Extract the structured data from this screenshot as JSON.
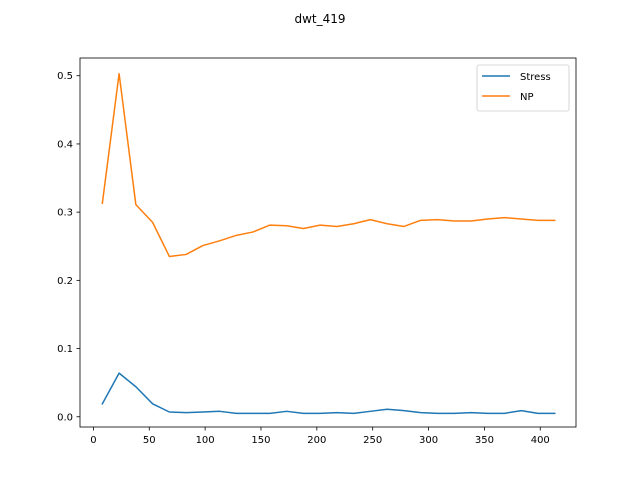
{
  "chart_data": {
    "type": "line",
    "title": "dwt_419",
    "xlabel": "",
    "ylabel": "",
    "xlim": [
      -12,
      432
    ],
    "ylim": [
      -0.015,
      0.526
    ],
    "xticks": [
      0,
      50,
      100,
      150,
      200,
      250,
      300,
      350,
      400
    ],
    "yticks": [
      0.0,
      0.1,
      0.2,
      0.3,
      0.4,
      0.5
    ],
    "ytick_labels": [
      "0.0",
      "0.1",
      "0.2",
      "0.3",
      "0.4",
      "0.5"
    ],
    "grid": false,
    "legend_position": "top-right",
    "x": [
      8,
      23,
      38,
      53,
      68,
      83,
      98,
      113,
      128,
      143,
      158,
      173,
      188,
      203,
      218,
      233,
      248,
      263,
      278,
      293,
      308,
      323,
      338,
      353,
      368,
      383,
      398,
      413
    ],
    "series": [
      {
        "name": "Stress",
        "color": "#1f77b4",
        "values": [
          0.019,
          0.064,
          0.044,
          0.019,
          0.007,
          0.006,
          0.007,
          0.008,
          0.005,
          0.005,
          0.005,
          0.008,
          0.005,
          0.005,
          0.006,
          0.005,
          0.008,
          0.011,
          0.009,
          0.006,
          0.005,
          0.005,
          0.006,
          0.005,
          0.005,
          0.009,
          0.005,
          0.005
        ]
      },
      {
        "name": "NP",
        "color": "#ff7f0e",
        "values": [
          0.313,
          0.503,
          0.311,
          0.285,
          0.235,
          0.238,
          0.251,
          0.258,
          0.266,
          0.271,
          0.281,
          0.28,
          0.276,
          0.281,
          0.279,
          0.283,
          0.289,
          0.283,
          0.279,
          0.288,
          0.289,
          0.287,
          0.287,
          0.29,
          0.292,
          0.29,
          0.288,
          0.288
        ]
      }
    ]
  }
}
